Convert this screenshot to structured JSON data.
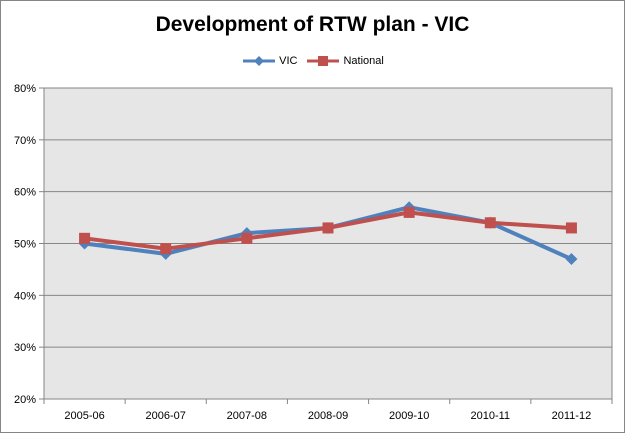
{
  "chart_data": {
    "type": "line",
    "title": "Development of RTW plan - VIC",
    "xlabel": "",
    "ylabel": "",
    "categories": [
      "2005-06",
      "2006-07",
      "2007-08",
      "2008-09",
      "2009-10",
      "2010-11",
      "2011-12"
    ],
    "y_ticks": [
      "20%",
      "30%",
      "40%",
      "50%",
      "60%",
      "70%",
      "80%"
    ],
    "ylim": [
      0.2,
      0.8
    ],
    "grid": "horizontal",
    "legend_position": "top",
    "series": [
      {
        "name": "VIC",
        "values": [
          0.5,
          0.48,
          0.52,
          0.53,
          0.57,
          0.54,
          0.47
        ],
        "color": "#4F81BD",
        "marker": "diamond"
      },
      {
        "name": "National",
        "values": [
          0.51,
          0.49,
          0.51,
          0.53,
          0.56,
          0.54,
          0.53
        ],
        "color": "#C0504D",
        "marker": "square"
      }
    ],
    "plot_background": "#E6E6E6"
  }
}
